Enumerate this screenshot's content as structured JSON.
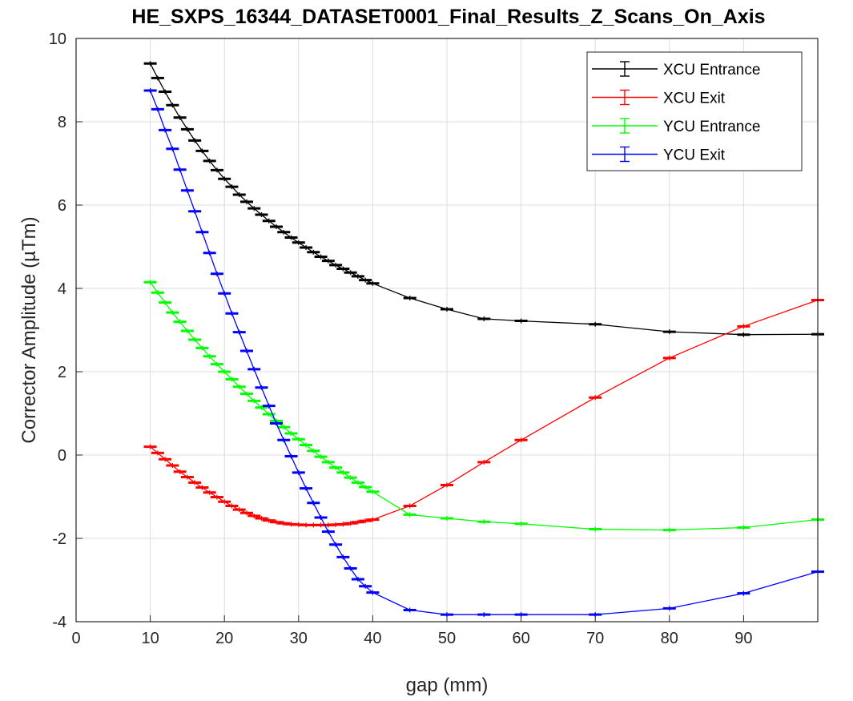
{
  "chart_data": {
    "type": "line",
    "title": "HE_SXPS_16344_DATASET0001_Final_Results_Z_Scans_On_Axis",
    "xlabel": "gap (mm)",
    "ylabel": "Corrector Amplitude (µTm)",
    "xlim": [
      0,
      100
    ],
    "ylim": [
      -4,
      10
    ],
    "xticks": [
      0,
      10,
      20,
      30,
      40,
      50,
      60,
      70,
      80,
      90
    ],
    "yticks": [
      -4,
      -2,
      0,
      2,
      4,
      6,
      8,
      10
    ],
    "grid": true,
    "error_bars": true,
    "legend_position": "top-right",
    "x": [
      10,
      11,
      12,
      13,
      14,
      15,
      16,
      17,
      18,
      19,
      20,
      21,
      22,
      23,
      24,
      25,
      26,
      27,
      28,
      29,
      30,
      31,
      32,
      33,
      34,
      35,
      36,
      37,
      38,
      39,
      40,
      45,
      50,
      55,
      60,
      70,
      80,
      90,
      100
    ],
    "series": [
      {
        "name": "XCU Entrance",
        "color": "#000000",
        "values": [
          9.4,
          9.05,
          8.72,
          8.4,
          8.1,
          7.82,
          7.55,
          7.3,
          7.06,
          6.84,
          6.63,
          6.44,
          6.25,
          6.08,
          5.92,
          5.77,
          5.62,
          5.48,
          5.35,
          5.22,
          5.1,
          4.98,
          4.87,
          4.76,
          4.66,
          4.56,
          4.47,
          4.38,
          4.29,
          4.2,
          4.12,
          3.77,
          3.5,
          3.27,
          3.22,
          3.14,
          2.96,
          2.89,
          2.9
        ]
      },
      {
        "name": "XCU Exit",
        "color": "#ff0000",
        "values": [
          0.2,
          0.05,
          -0.1,
          -0.25,
          -0.4,
          -0.53,
          -0.66,
          -0.78,
          -0.9,
          -1.01,
          -1.12,
          -1.22,
          -1.31,
          -1.39,
          -1.46,
          -1.52,
          -1.57,
          -1.61,
          -1.64,
          -1.66,
          -1.67,
          -1.68,
          -1.68,
          -1.68,
          -1.68,
          -1.67,
          -1.66,
          -1.64,
          -1.61,
          -1.58,
          -1.55,
          -1.22,
          -0.72,
          -0.17,
          0.36,
          1.38,
          2.33,
          3.09,
          3.72
        ]
      },
      {
        "name": "YCU Entrance",
        "color": "#00ff00",
        "values": [
          4.15,
          3.9,
          3.66,
          3.42,
          3.2,
          2.98,
          2.77,
          2.57,
          2.37,
          2.18,
          2.0,
          1.82,
          1.64,
          1.47,
          1.3,
          1.14,
          0.98,
          0.82,
          0.67,
          0.52,
          0.38,
          0.24,
          0.1,
          -0.04,
          -0.17,
          -0.3,
          -0.42,
          -0.54,
          -0.66,
          -0.77,
          -0.88,
          -1.43,
          -1.52,
          -1.6,
          -1.65,
          -1.78,
          -1.8,
          -1.74,
          -1.55
        ]
      },
      {
        "name": "YCU Exit",
        "color": "#0000ff",
        "values": [
          8.75,
          8.3,
          7.8,
          7.35,
          6.85,
          6.35,
          5.85,
          5.35,
          4.85,
          4.35,
          3.88,
          3.4,
          2.95,
          2.5,
          2.06,
          1.62,
          1.18,
          0.76,
          0.36,
          -0.03,
          -0.42,
          -0.8,
          -1.15,
          -1.5,
          -1.84,
          -2.15,
          -2.45,
          -2.72,
          -2.98,
          -3.15,
          -3.3,
          -3.72,
          -3.83,
          -3.83,
          -3.83,
          -3.83,
          -3.68,
          -3.32,
          -2.8
        ]
      }
    ]
  }
}
